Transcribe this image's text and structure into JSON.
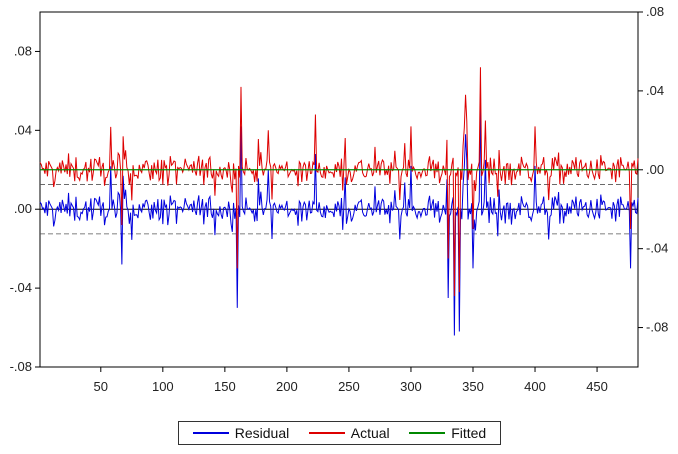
{
  "chart_data": {
    "type": "line",
    "title": "",
    "x": {
      "range": [
        1,
        483
      ],
      "ticks": [
        "50",
        "100",
        "150",
        "200",
        "250",
        "300",
        "350",
        "400",
        "450"
      ]
    },
    "y_left": {
      "range": [
        -0.08,
        0.1
      ],
      "tick_values": [
        -0.08,
        -0.04,
        0.0,
        0.04,
        0.08
      ],
      "tick_labels": [
        "-.08",
        "-.04",
        ".00",
        ".04",
        ".08"
      ]
    },
    "y_right": {
      "range": [
        -0.1,
        0.08
      ],
      "tick_values": [
        -0.08,
        -0.04,
        0.0,
        0.04,
        0.08
      ],
      "tick_labels": [
        "-.08",
        "-.04",
        ".00",
        ".04",
        ".08"
      ]
    },
    "residual_bands": [
      0.0125,
      -0.0125
    ],
    "series": [
      {
        "name": "Residual",
        "axis": "left",
        "color": "#0000dd",
        "shocks": [
          [
            67,
            -0.028
          ],
          [
            160,
            -0.05
          ],
          [
            163,
            0.042
          ],
          [
            185,
            0.02
          ],
          [
            223,
            0.028
          ],
          [
            300,
            0.022
          ],
          [
            330,
            -0.045
          ],
          [
            335,
            -0.064
          ],
          [
            339,
            -0.062
          ],
          [
            344,
            0.038
          ],
          [
            350,
            -0.03
          ],
          [
            356,
            0.052
          ],
          [
            360,
            0.025
          ],
          [
            400,
            0.022
          ],
          [
            477,
            -0.03
          ]
        ]
      },
      {
        "name": "Actual",
        "axis": "right",
        "color": "#dd0000",
        "mean": 0.0,
        "shocks": [
          [
            67,
            -0.028
          ],
          [
            160,
            -0.05
          ],
          [
            163,
            0.042
          ],
          [
            185,
            0.02
          ],
          [
            223,
            0.028
          ],
          [
            300,
            0.022
          ],
          [
            330,
            -0.045
          ],
          [
            335,
            -0.064
          ],
          [
            339,
            -0.062
          ],
          [
            344,
            0.038
          ],
          [
            350,
            -0.03
          ],
          [
            356,
            0.052
          ],
          [
            360,
            0.025
          ],
          [
            400,
            0.022
          ],
          [
            477,
            -0.03
          ]
        ]
      },
      {
        "name": "Fitted",
        "axis": "right",
        "color": "#008800",
        "value": 0.0
      }
    ],
    "legend_position": "bottom-center",
    "grid": false
  }
}
